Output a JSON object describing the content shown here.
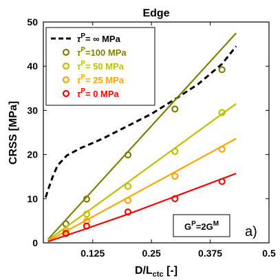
{
  "chart_data": {
    "type": "line",
    "title": "Edge",
    "xlabel": {
      "main": "D/L",
      "sub": "ctc",
      "suffix": " [-]"
    },
    "ylabel": "CRSS [MPa]",
    "xlim": [
      0.02,
      0.5
    ],
    "ylim": [
      0,
      50
    ],
    "xticks": [
      0.125,
      0.25,
      0.375,
      0.5
    ],
    "xtick_labels": [
      "0.125",
      "0.25",
      "0.375",
      "0.5"
    ],
    "yticks": [
      0,
      10,
      20,
      30,
      40,
      50
    ],
    "ytick_labels": [
      "0",
      "10",
      "20",
      "30",
      "40",
      "50"
    ],
    "grid": false,
    "legend_position": "top-left",
    "annotation_box": {
      "base": "G",
      "sup1": "P",
      "mid": "=2G",
      "sup2": "M"
    },
    "panel_label": "a)",
    "series": [
      {
        "legend_sym": "τ",
        "legend_sup": "P",
        "legend_rest": "=  ∞ MPa",
        "color": "#000000",
        "dashed": true,
        "line_x": [
          0.025,
          0.03,
          0.04,
          0.05,
          0.07,
          0.1,
          0.125,
          0.15,
          0.2,
          0.25,
          0.3,
          0.35,
          0.4,
          0.43
        ],
        "line_y": [
          10.3,
          12.0,
          15.0,
          17.5,
          19.8,
          21.5,
          22.6,
          23.8,
          26.5,
          29.2,
          32.5,
          36.0,
          40.5,
          44.5
        ],
        "points_x": [],
        "points_y": []
      },
      {
        "legend_sym": "τ",
        "legend_sup": "P",
        "legend_rest": "=100 MPa",
        "color": "#808000",
        "dashed": false,
        "line_x": [
          0.03,
          0.43
        ],
        "line_y": [
          0.8,
          47.5
        ],
        "points_x": [
          0.068,
          0.112,
          0.2,
          0.3,
          0.4
        ],
        "points_y": [
          4.3,
          9.9,
          19.9,
          30.3,
          39.2
        ]
      },
      {
        "legend_sym": "τ",
        "legend_sup": "P",
        "legend_rest": "=  50 MPa",
        "color": "#bfbf00",
        "dashed": false,
        "line_x": [
          0.03,
          0.43
        ],
        "line_y": [
          0.6,
          31.5
        ],
        "points_x": [
          0.068,
          0.112,
          0.2,
          0.3,
          0.4
        ],
        "points_y": [
          2.8,
          6.5,
          12.8,
          20.7,
          29.5
        ]
      },
      {
        "legend_sym": "τ",
        "legend_sup": "P",
        "legend_rest": "=  25 MPa",
        "color": "#ffa500",
        "dashed": false,
        "line_x": [
          0.03,
          0.43
        ],
        "line_y": [
          0.4,
          23.6
        ],
        "points_x": [
          0.068,
          0.112,
          0.2,
          0.3,
          0.4
        ],
        "points_y": [
          2.3,
          4.9,
          9.6,
          15.1,
          21.2
        ]
      },
      {
        "legend_sym": "τ",
        "legend_sup": "P",
        "legend_rest": "=    0 MPa",
        "color": "#ff0000",
        "dashed": false,
        "line_x": [
          0.03,
          0.1,
          0.2,
          0.3,
          0.43
        ],
        "line_y": [
          0.3,
          2.8,
          6.5,
          10.5,
          15.7
        ],
        "points_x": [
          0.068,
          0.112,
          0.2,
          0.3,
          0.4
        ],
        "points_y": [
          2.1,
          3.8,
          7.0,
          10.0,
          13.9
        ]
      }
    ]
  }
}
